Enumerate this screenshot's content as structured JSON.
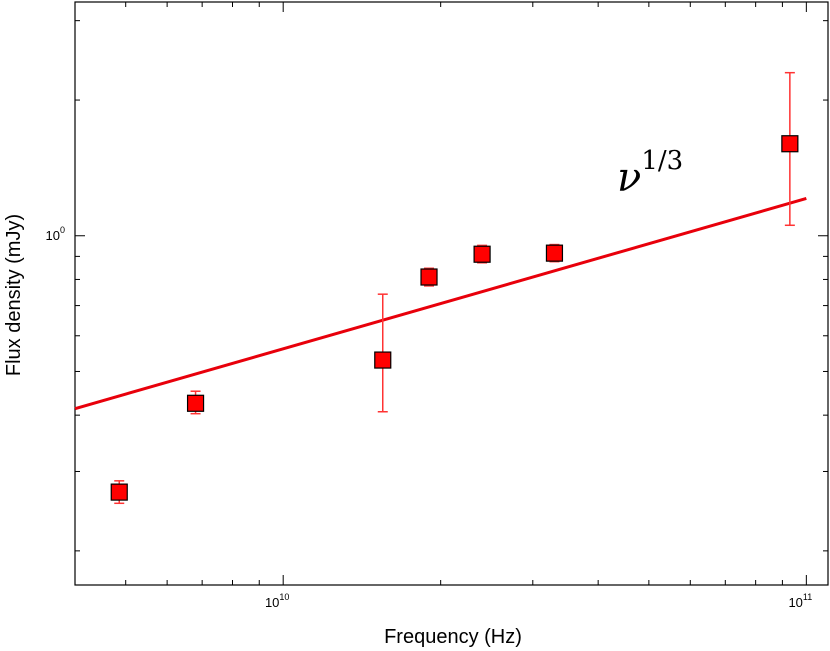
{
  "chart_data": {
    "type": "scatter",
    "xlabel": "Frequency (Hz)",
    "ylabel": "Flux density (mJy)",
    "xscale": "log",
    "yscale": "log",
    "xlim": [
      4000000000,
      110000000000
    ],
    "ylim": [
      0.168,
      3.3
    ],
    "grid": false,
    "x_major_ticks": [
      {
        "value": 10000000000,
        "base": "10",
        "exp": "10"
      },
      {
        "value": 100000000000,
        "base": "10",
        "exp": "11"
      }
    ],
    "y_major_ticks": [
      {
        "value": 1.0,
        "base": "10",
        "exp": "0"
      }
    ],
    "points": [
      {
        "x": 4860000000,
        "y": 0.27,
        "yerr_low": 0.255,
        "yerr_high": 0.286
      },
      {
        "x": 6800000000,
        "y": 0.425,
        "yerr_low": 0.403,
        "yerr_high": 0.452
      },
      {
        "x": 15500000000,
        "y": 0.53,
        "yerr_low": 0.407,
        "yerr_high": 0.742
      },
      {
        "x": 19000000000,
        "y": 0.81,
        "yerr_low": 0.774,
        "yerr_high": 0.847
      },
      {
        "x": 24000000000,
        "y": 0.91,
        "yerr_low": 0.871,
        "yerr_high": 0.952
      },
      {
        "x": 33000000000,
        "y": 0.915,
        "yerr_low": 0.876,
        "yerr_high": 0.956
      },
      {
        "x": 93000000000,
        "y": 1.6,
        "yerr_low": 1.055,
        "yerr_high": 2.3
      }
    ],
    "fit_line": {
      "label": "ν",
      "label_exp": "1/3",
      "slope": 0.333333,
      "x": [
        4000000000,
        100000000000
      ],
      "y": [
        0.4135,
        1.21
      ]
    },
    "colors": {
      "marker": "#ff0000",
      "marker_edge": "#000000",
      "errorbar": "#ff3333",
      "line": "#e8000b"
    }
  }
}
